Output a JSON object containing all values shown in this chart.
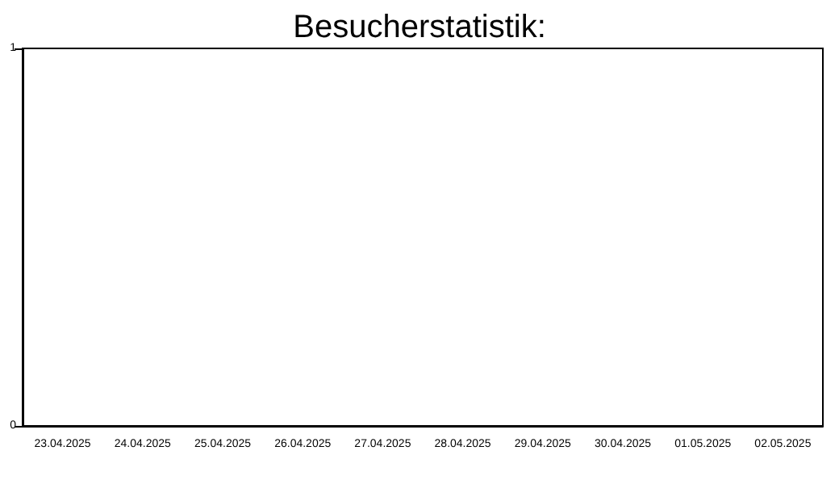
{
  "chart_data": {
    "type": "bar",
    "title": "Besucherstatistik:",
    "categories": [
      "23.04.2025",
      "24.04.2025",
      "25.04.2025",
      "26.04.2025",
      "27.04.2025",
      "28.04.2025",
      "29.04.2025",
      "30.04.2025",
      "01.05.2025",
      "02.05.2025"
    ],
    "values": [
      0,
      0,
      0,
      0,
      0,
      0,
      0,
      0,
      0,
      0
    ],
    "ylim": [
      0,
      1
    ],
    "yticks": [
      0,
      1
    ]
  }
}
